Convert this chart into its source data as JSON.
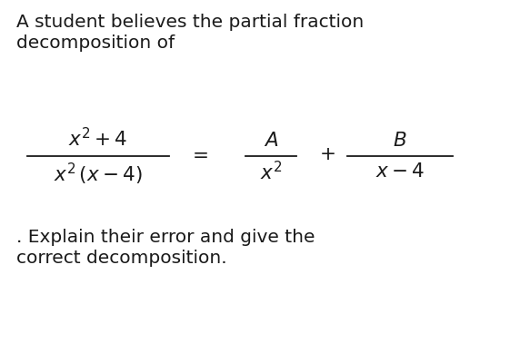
{
  "background_color": "#ffffff",
  "text_color": "#1a1a1a",
  "line1": "A student believes the partial fraction",
  "line2": "decomposition of",
  "line_bottom1": ". Explain their error and give the",
  "line_bottom2": "correct decomposition.",
  "numerator_left": "$x^2 + 4$",
  "denominator_left": "$x^2\\,(x - 4)$",
  "numerator_mid": "$A$",
  "denominator_mid": "$x^2$",
  "numerator_right": "$B$",
  "denominator_right": "$x - 4$",
  "equals": "$=$",
  "plus": "$+$",
  "fig_width": 5.83,
  "fig_height": 4.0,
  "dpi": 100,
  "fs_text": 14.5,
  "fs_math": 15.5
}
